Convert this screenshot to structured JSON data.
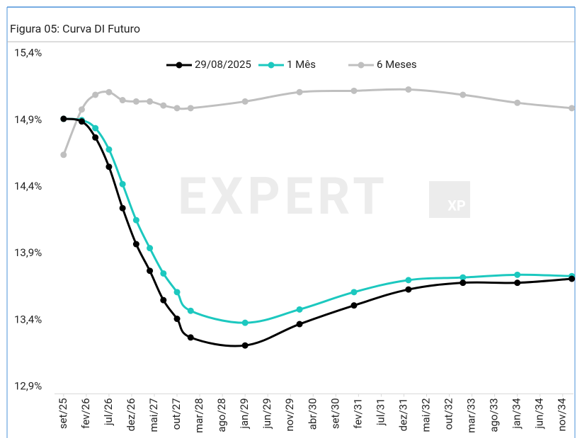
{
  "chart_data": {
    "type": "line",
    "title": "Figura 05: Curva DI Futuro",
    "watermark": [
      "EXPERT",
      "XP"
    ],
    "x": [
      0,
      4,
      7,
      10,
      13,
      16,
      19,
      22,
      25,
      28,
      40,
      52,
      64,
      76,
      88,
      100,
      112
    ],
    "xlim": [
      -2,
      113
    ],
    "xticks": [
      {
        "value": 0,
        "label": "set/25"
      },
      {
        "value": 5,
        "label": "fev/26"
      },
      {
        "value": 10,
        "label": "jul/26"
      },
      {
        "value": 15,
        "label": "dez/26"
      },
      {
        "value": 20,
        "label": "mai/27"
      },
      {
        "value": 25,
        "label": "out/27"
      },
      {
        "value": 30,
        "label": "mar/28"
      },
      {
        "value": 35,
        "label": "ago/28"
      },
      {
        "value": 40,
        "label": "jan/29"
      },
      {
        "value": 45,
        "label": "jun/29"
      },
      {
        "value": 50,
        "label": "nov/29"
      },
      {
        "value": 55,
        "label": "abr/30"
      },
      {
        "value": 60,
        "label": "set/30"
      },
      {
        "value": 65,
        "label": "fev/31"
      },
      {
        "value": 70,
        "label": "jul/31"
      },
      {
        "value": 75,
        "label": "dez/31"
      },
      {
        "value": 80,
        "label": "mai/32"
      },
      {
        "value": 85,
        "label": "out/32"
      },
      {
        "value": 90,
        "label": "mar/33"
      },
      {
        "value": 95,
        "label": "ago/33"
      },
      {
        "value": 100,
        "label": "jan/34"
      },
      {
        "value": 105,
        "label": "jun/34"
      },
      {
        "value": 110,
        "label": "nov/34"
      }
    ],
    "ylim": [
      12.9,
      15.4
    ],
    "yticks": [
      {
        "value": 12.9,
        "label": "12,9%"
      },
      {
        "value": 13.4,
        "label": "13,4%"
      },
      {
        "value": 13.9,
        "label": "13,9%"
      },
      {
        "value": 14.4,
        "label": "14,4%"
      },
      {
        "value": 14.9,
        "label": "14,9%"
      },
      {
        "value": 15.4,
        "label": "15,4%"
      }
    ],
    "legend": "top",
    "series": [
      {
        "name": "29/08/2025",
        "color": "#000000",
        "values": [
          14.91,
          14.89,
          14.77,
          14.55,
          14.24,
          13.97,
          13.77,
          13.55,
          13.41,
          13.27,
          13.21,
          13.37,
          13.51,
          13.63,
          13.68,
          13.68,
          13.71
        ]
      },
      {
        "name": "1 Mês",
        "color": "#1cc8bf",
        "values": [
          14.91,
          14.9,
          14.84,
          14.68,
          14.42,
          14.15,
          13.94,
          13.75,
          13.61,
          13.47,
          13.38,
          13.48,
          13.61,
          13.7,
          13.72,
          13.74,
          13.73
        ]
      },
      {
        "name": "6 Meses",
        "color": "#bfbfbf",
        "values": [
          14.64,
          14.98,
          15.09,
          15.11,
          15.05,
          15.04,
          15.04,
          15.01,
          14.99,
          14.99,
          15.04,
          15.11,
          15.12,
          15.13,
          15.09,
          15.03,
          14.99
        ]
      }
    ]
  }
}
